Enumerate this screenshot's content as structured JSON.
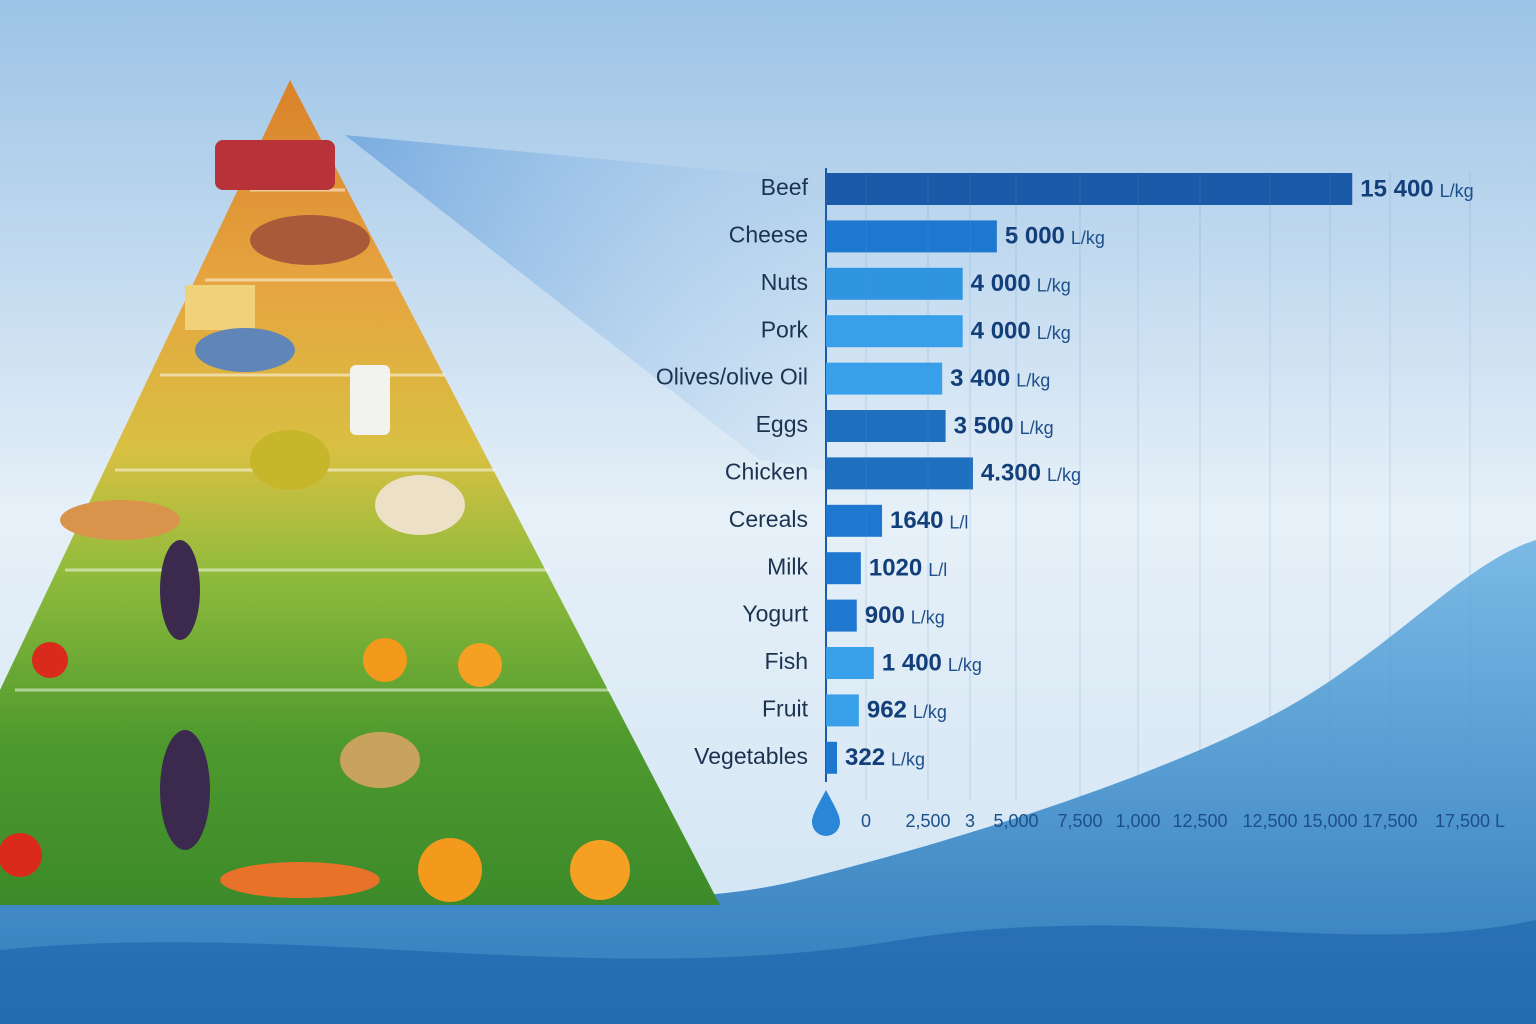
{
  "chart_data": {
    "type": "bar",
    "orientation": "horizontal",
    "categories": [
      "Beef",
      "Cheese",
      "Nuts",
      "Pork",
      "Olives/olive Oil",
      "Eggs",
      "Chicken",
      "Cereals",
      "Milk",
      "Yogurt",
      "Fish",
      "Fruit",
      "Vegetables"
    ],
    "values": [
      15400,
      5000,
      4000,
      4000,
      3400,
      3500,
      4300,
      1640,
      1020,
      900,
      1400,
      962,
      322
    ],
    "value_labels": [
      "15 400",
      "5 000",
      "4 000",
      "4 000",
      "3 400",
      "3 500",
      "4.300",
      "1640",
      "1020",
      "900",
      "1 400",
      "962",
      "322"
    ],
    "units": [
      "L/kg",
      "L/kg",
      "L/kg",
      "L/kg",
      "L/kg",
      "L/kg",
      "L/kg",
      "L/l",
      "L/l",
      "L/kg",
      "L/kg",
      "L/kg",
      "L/kg"
    ],
    "colors": [
      "#1a5aa8",
      "#1f78cf",
      "#2f95e0",
      "#38a0ea",
      "#38a0ea",
      "#1f6fc0",
      "#1f6fc0",
      "#1f78cf",
      "#1f78cf",
      "#1f78cf",
      "#38a0e8",
      "#38a0e8",
      "#1f78cf"
    ],
    "xlim": [
      0,
      17500
    ],
    "axis_labels": [
      "0",
      "2,500",
      "3",
      "5,000",
      "7,500",
      "1,000",
      "12,500",
      "12,500",
      "15,000",
      "17,500",
      "17,500 L"
    ]
  }
}
